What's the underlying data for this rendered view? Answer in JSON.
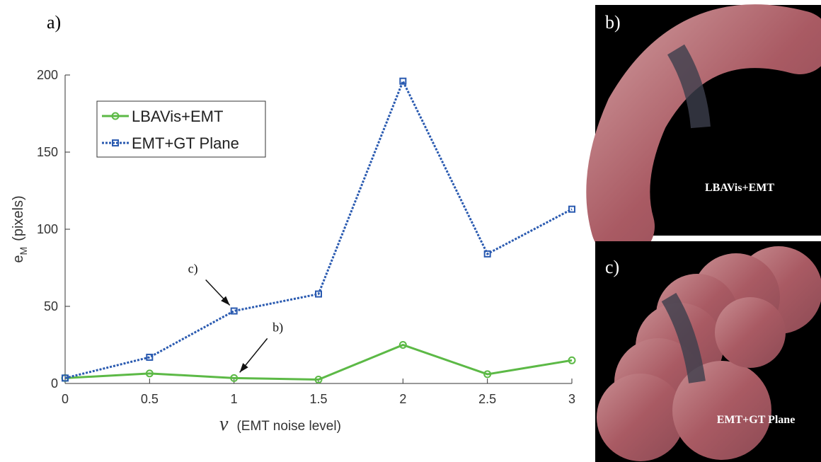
{
  "chart_data": {
    "type": "line",
    "panel_label": "a)",
    "ylabel": "e",
    "ylabel_sub": "M",
    "ylabel_unit": "(pixels)",
    "xlabel_symbol": "ν",
    "xlabel": "(EMT noise level)",
    "x": [
      0,
      0.5,
      1,
      1.5,
      2,
      2.5,
      3
    ],
    "series": [
      {
        "name": "LBAVis+EMT",
        "color": "#5cb946",
        "marker": "circle",
        "dash": "solid",
        "values": [
          3.5,
          6.5,
          3.5,
          2.5,
          25,
          6,
          15
        ]
      },
      {
        "name": "EMT+GT Plane",
        "color": "#2a5ab0",
        "marker": "square",
        "dash": "dotted",
        "values": [
          3.5,
          17,
          47,
          58,
          196,
          84,
          113
        ]
      }
    ],
    "xlim": [
      0,
      3
    ],
    "xticks": [
      0,
      0.5,
      1,
      1.5,
      2,
      2.5,
      3
    ],
    "ylim": [
      0,
      200
    ],
    "yticks": [
      0,
      50,
      100,
      150,
      200
    ],
    "legend": "upper left",
    "annotations": [
      {
        "text": "c)",
        "x": 1,
        "y": 47
      },
      {
        "text": "b)",
        "x": 1,
        "y": 3.5
      }
    ]
  },
  "panels": [
    {
      "label": "b)",
      "caption": "LBAVis+EMT"
    },
    {
      "label": "c)",
      "caption": "EMT+GT Plane"
    }
  ]
}
